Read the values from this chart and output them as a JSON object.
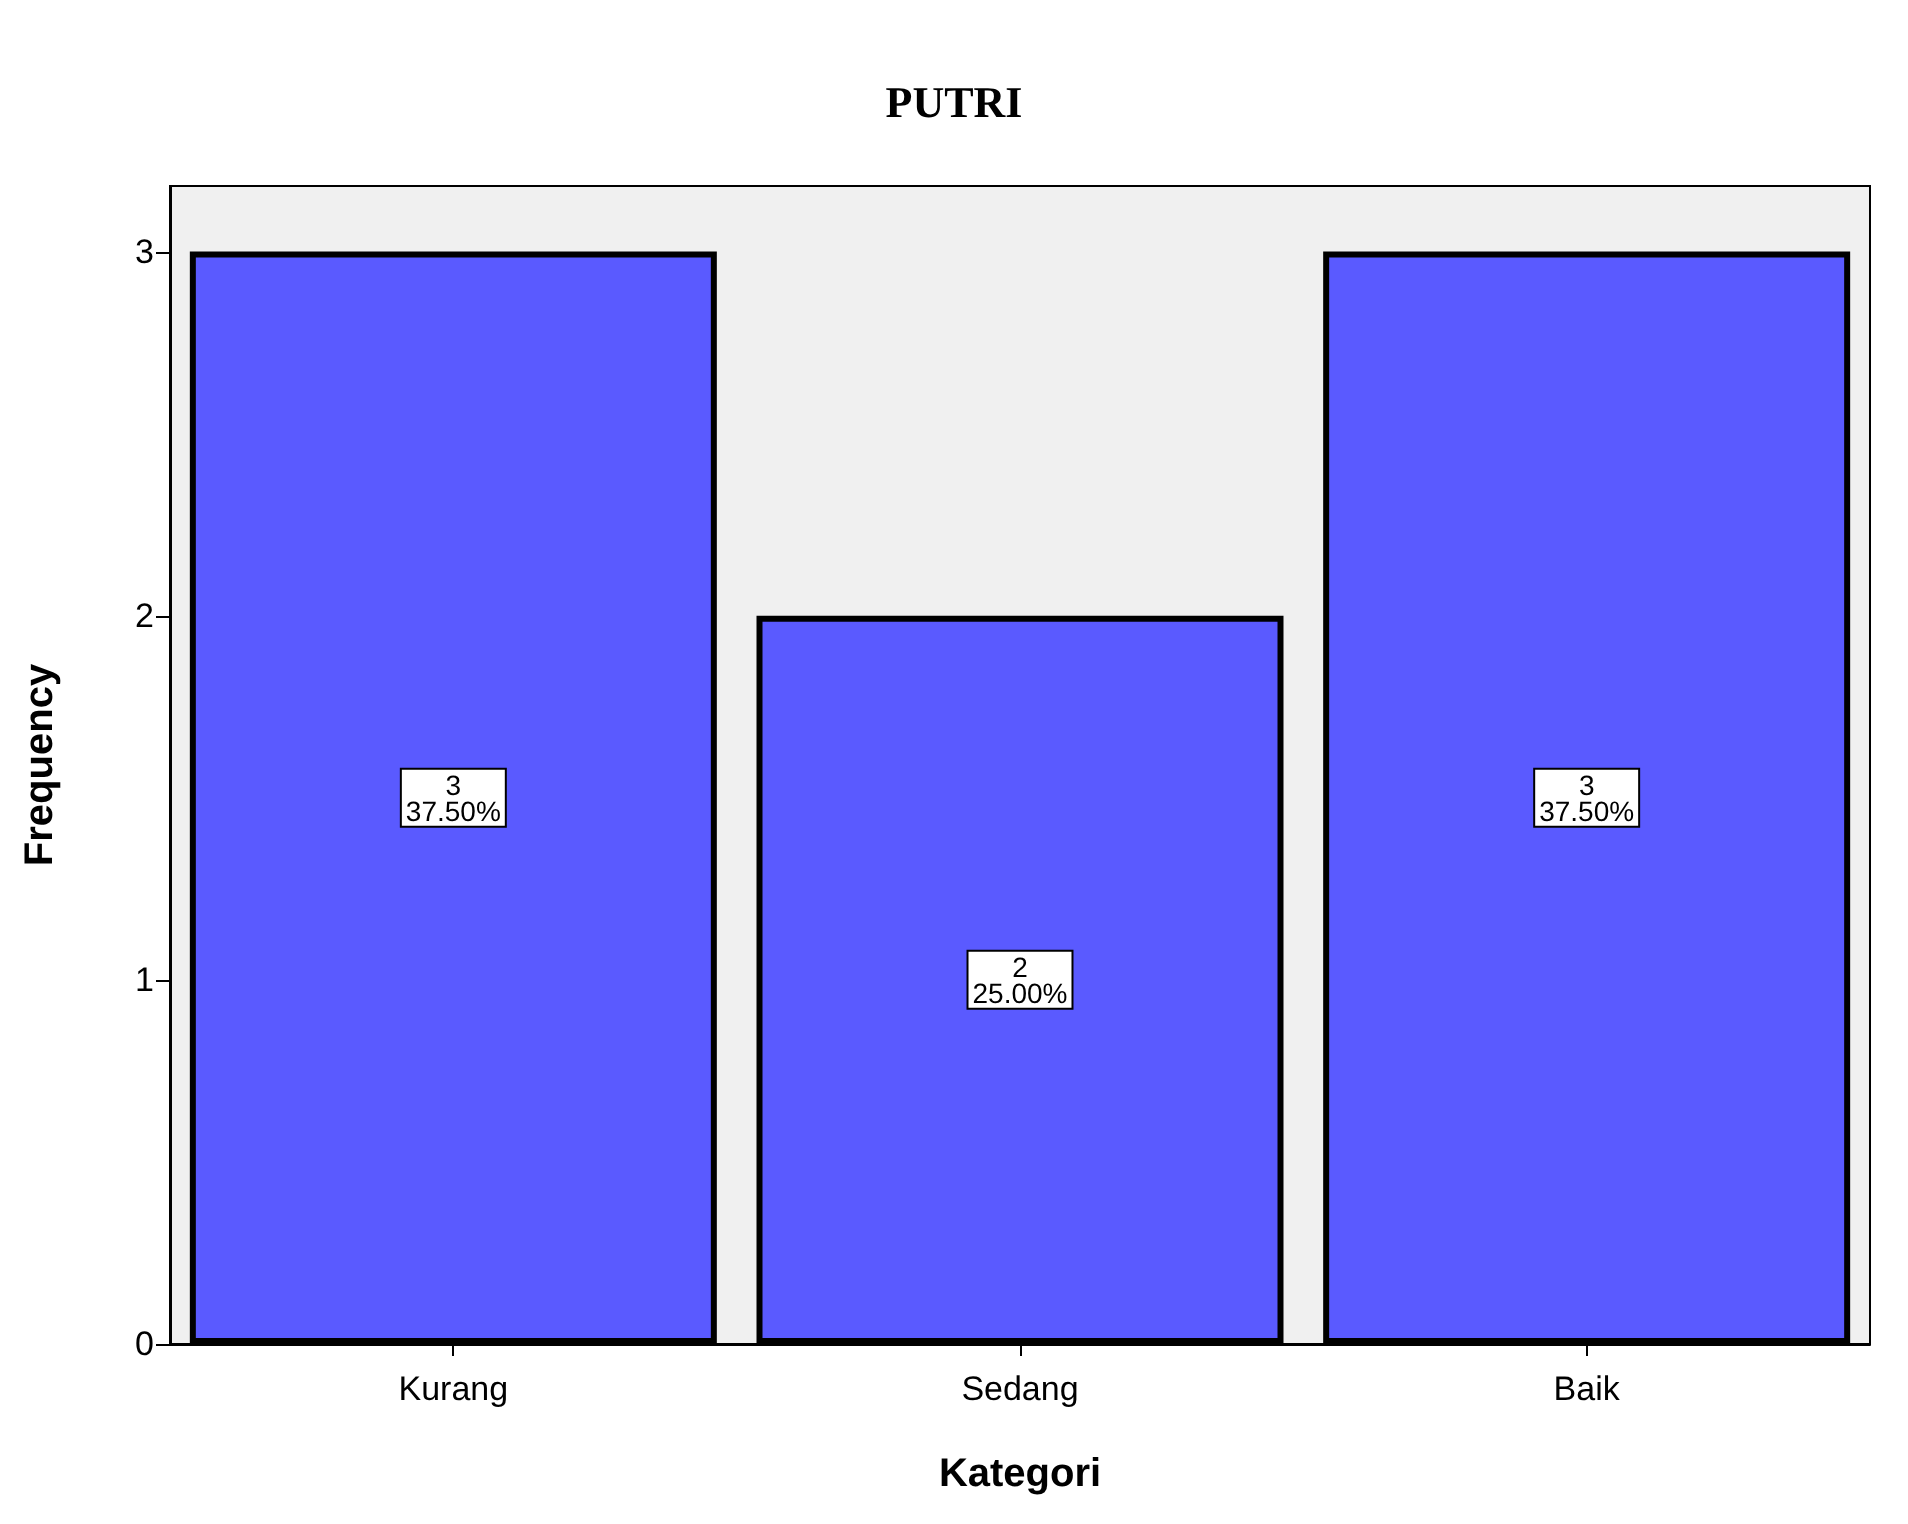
{
  "chart_data": {
    "type": "bar",
    "title": "PUTRI",
    "xlabel": "Kategori",
    "ylabel": "Frequency",
    "categories": [
      "Kurang",
      "Sedang",
      "Baik"
    ],
    "values": [
      3,
      2,
      3
    ],
    "color": "#5a5aff",
    "value_labels": [
      "3\n37.50%",
      "2\n25.00%",
      "3\n37.50%"
    ],
    "ylim": [
      0,
      3.18
    ],
    "yticks": [
      0,
      1,
      2,
      3
    ],
    "grid": false
  }
}
